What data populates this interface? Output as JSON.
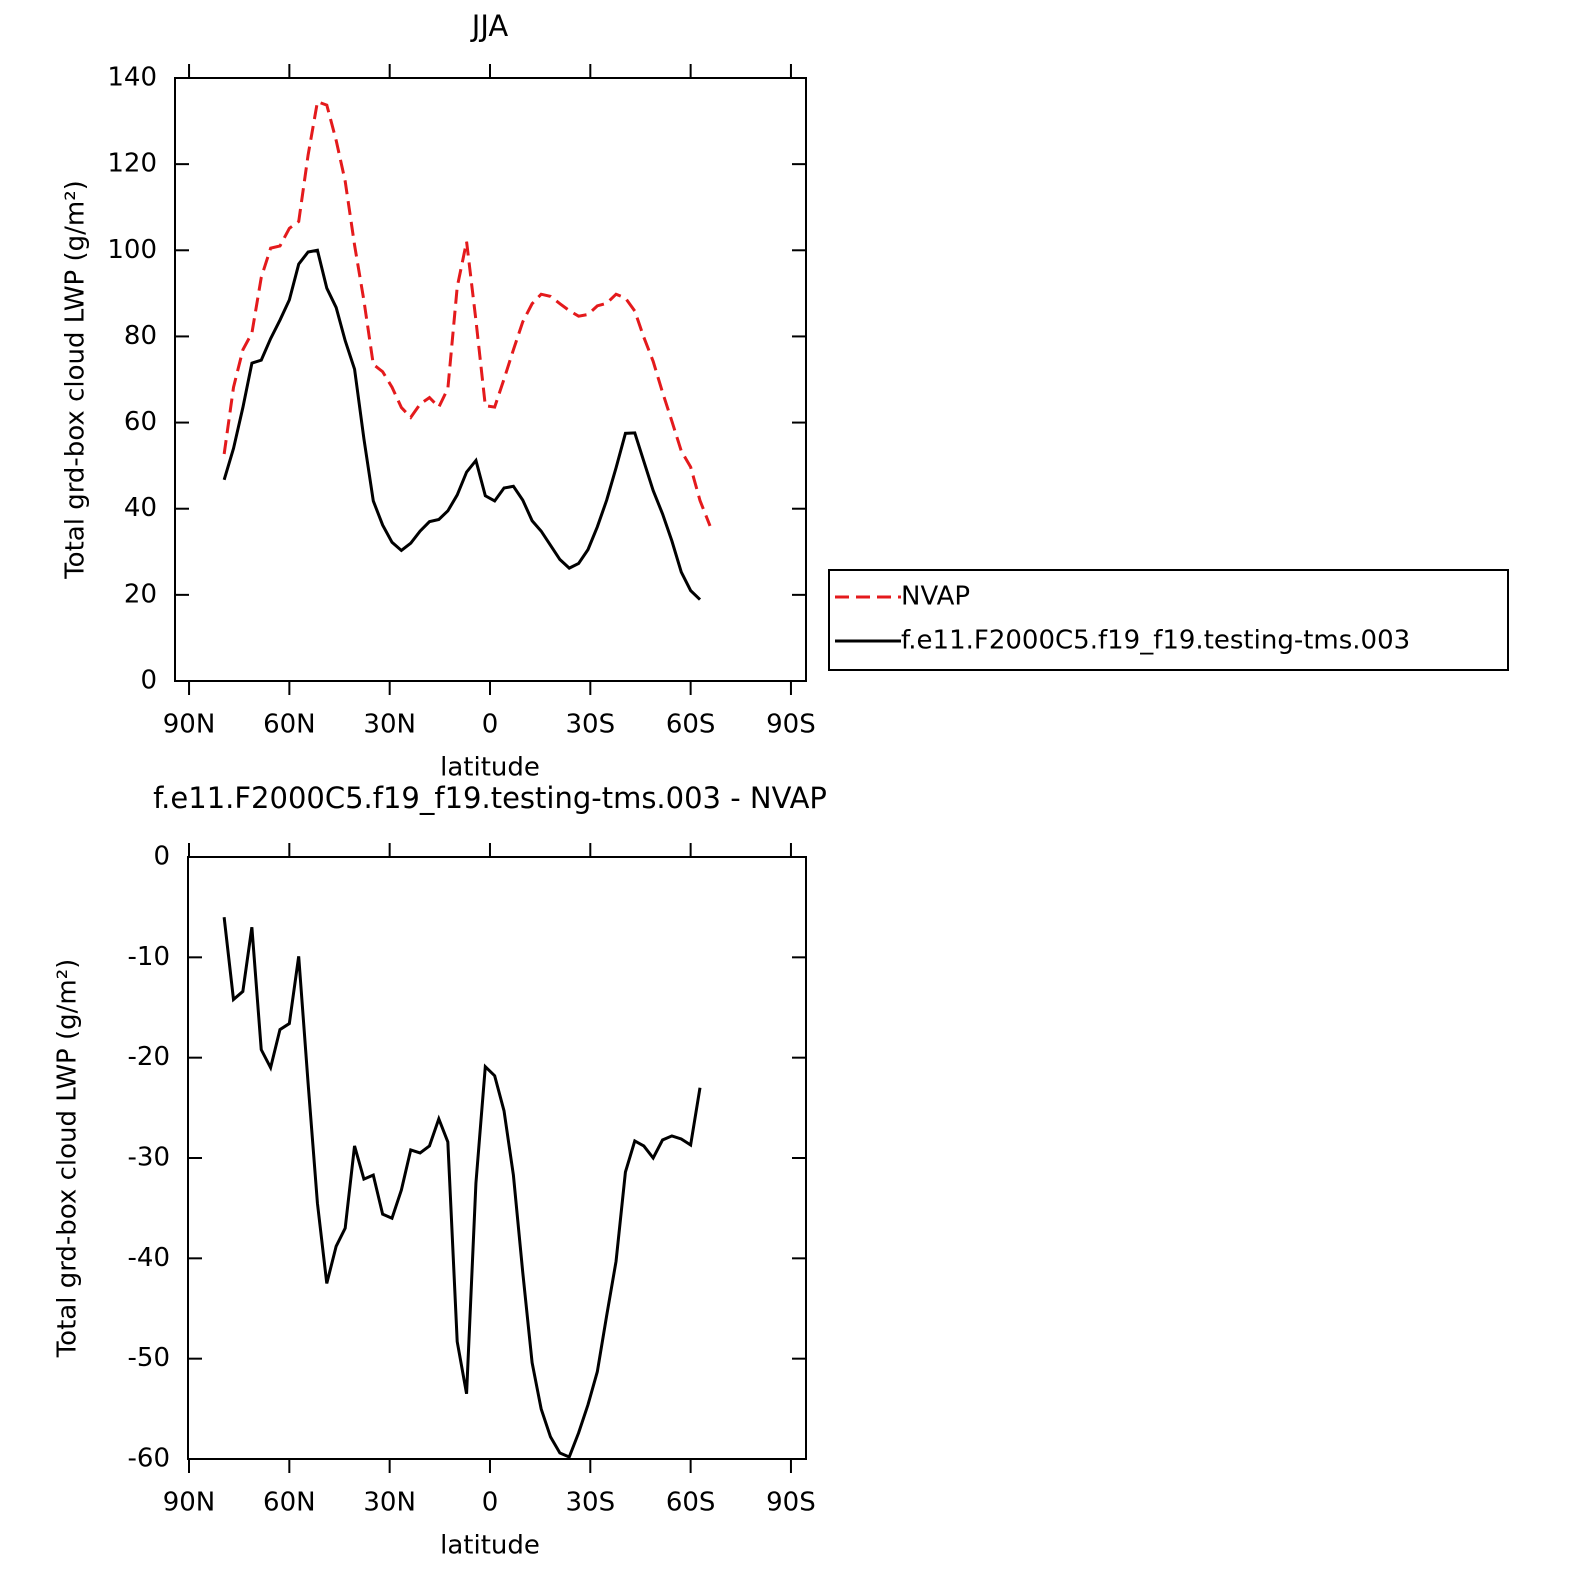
{
  "chart_data": [
    {
      "type": "line",
      "title": "JJA",
      "xlabel": "latitude",
      "ylabel": "Total grd-box cloud LWP (g/m²)",
      "x": [
        79.5,
        76.7,
        73.9,
        71.2,
        68.4,
        65.6,
        62.8,
        60.0,
        57.2,
        54.4,
        51.6,
        48.8,
        46.0,
        43.3,
        40.5,
        37.7,
        34.9,
        32.1,
        29.3,
        26.5,
        23.7,
        20.9,
        18.1,
        15.3,
        12.6,
        9.8,
        7.0,
        4.2,
        1.4,
        -1.4,
        -4.2,
        -7.0,
        -9.8,
        -12.6,
        -15.3,
        -18.1,
        -20.9,
        -23.7,
        -26.5,
        -29.3,
        -32.1,
        -34.9,
        -37.7,
        -40.5,
        -43.3,
        -46.0,
        -48.8,
        -51.6,
        -54.4,
        -57.2,
        -60.0,
        -62.8,
        -65.8
      ],
      "series": [
        {
          "name": "NVAP",
          "color": "#e41a1c",
          "linestyle": "dashed",
          "values": [
            52.7,
            68.2,
            76.9,
            80.8,
            93.7,
            100.5,
            101,
            105.1,
            106.7,
            122.1,
            134.5,
            133.7,
            125.5,
            116,
            101.2,
            88.3,
            73.5,
            71.8,
            68.2,
            63.5,
            61.2,
            64.3,
            65.8,
            63.6,
            67.9,
            91.5,
            102,
            83.7,
            63.9,
            63.6,
            70.1,
            76.9,
            83.4,
            87.6,
            89.8,
            89.3,
            87.6,
            86,
            84.7,
            85.1,
            87.1,
            87.7,
            89.8,
            88.9,
            85.9,
            79.8,
            74.2,
            67,
            60.3,
            53.4,
            49.7,
            41.9,
            36
          ]
        },
        {
          "name": "f.e11.F2000C5.f19_f19.testing-tms.003",
          "color": "#000000",
          "linestyle": "solid",
          "values": [
            46.7,
            54,
            63.5,
            73.8,
            74.5,
            79.5,
            83.8,
            88.5,
            96.8,
            99.6,
            100,
            91.2,
            86.7,
            79,
            72.4,
            56.2,
            41.8,
            36.2,
            32.2,
            30.3,
            32,
            34.8,
            37,
            37.5,
            39.5,
            43.2,
            48.5,
            51.2,
            43,
            41.8,
            44.8,
            45.2,
            42,
            37.2,
            34.8,
            31.5,
            28.2,
            26.2,
            27.3,
            30.5,
            35.8,
            42,
            49.5,
            57.5,
            57.6,
            51,
            44.2,
            38.8,
            32.5,
            25.3,
            21,
            18.9,
            null
          ]
        }
      ],
      "xlim": [
        94.2,
        -94.5
      ],
      "ylim": [
        0,
        140
      ],
      "xticks": [
        {
          "value": 90,
          "label": "90N"
        },
        {
          "value": 60,
          "label": "60N"
        },
        {
          "value": 30,
          "label": "30N"
        },
        0,
        {
          "value": -30,
          "label": "30S"
        },
        {
          "value": -60,
          "label": "60S"
        },
        {
          "value": -90,
          "label": "90S"
        }
      ],
      "yticks": [
        0,
        20,
        40,
        60,
        80,
        100,
        120,
        140
      ],
      "legend": "right"
    },
    {
      "type": "line",
      "title": "f.e11.F2000C5.f19_f19.testing-tms.003 - NVAP",
      "xlabel": "latitude",
      "ylabel": "Total grd-box cloud LWP (g/m²)",
      "x": [
        79.5,
        76.7,
        73.9,
        71.2,
        68.4,
        65.6,
        62.8,
        60.0,
        57.2,
        54.4,
        51.6,
        48.8,
        46.0,
        43.3,
        40.5,
        37.7,
        34.9,
        32.1,
        29.3,
        26.5,
        23.7,
        20.9,
        18.1,
        15.3,
        12.6,
        9.8,
        7.0,
        4.2,
        1.4,
        -1.4,
        -4.2,
        -7.0,
        -9.8,
        -12.6,
        -15.3,
        -18.1,
        -20.9,
        -23.7,
        -26.5,
        -29.3,
        -32.1,
        -34.9,
        -37.7,
        -40.5,
        -43.3,
        -46.0,
        -48.8,
        -51.6,
        -54.4,
        -57.2,
        -60.0,
        -62.8
      ],
      "series": [
        {
          "color": "#000000",
          "linestyle": "solid",
          "values": [
            -6,
            -14.2,
            -13.4,
            -7,
            -19.2,
            -21,
            -17.2,
            -16.6,
            -9.9,
            -22.5,
            -34.5,
            -42.5,
            -38.8,
            -37,
            -28.8,
            -32.1,
            -31.7,
            -35.6,
            -36,
            -33.2,
            -29.2,
            -29.5,
            -28.8,
            -26.1,
            -28.4,
            -48.3,
            -53.5,
            -32.5,
            -20.9,
            -21.8,
            -25.3,
            -31.7,
            -41.4,
            -50.4,
            -55,
            -57.8,
            -59.4,
            -59.8,
            -57.4,
            -54.6,
            -51.3,
            -45.7,
            -40.3,
            -31.4,
            -28.3,
            -28.8,
            -30,
            -28.2,
            -27.8,
            -28.1,
            -28.7,
            -23
          ]
        }
      ],
      "xlim": [
        90.3,
        -94.5
      ],
      "ylim": [
        -60,
        0
      ],
      "xticks": [
        {
          "value": 90,
          "label": "90N"
        },
        {
          "value": 60,
          "label": "60N"
        },
        {
          "value": 30,
          "label": "30N"
        },
        0,
        {
          "value": -30,
          "label": "30S"
        },
        {
          "value": -60,
          "label": "60S"
        },
        {
          "value": -90,
          "label": "90S"
        }
      ],
      "yticks": [
        0,
        -10,
        -20,
        -30,
        -40,
        -50,
        -60
      ]
    }
  ]
}
